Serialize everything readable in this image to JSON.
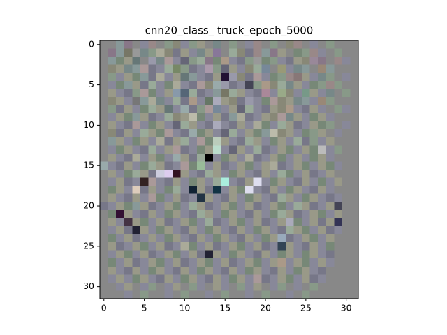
{
  "chart_data": {
    "type": "image",
    "title": "cnn20_class_ truck_epoch_5000",
    "xlim": [
      -0.5,
      31.5
    ],
    "ylim": [
      31.5,
      -0.5
    ],
    "xticks": [
      0,
      5,
      10,
      15,
      20,
      25,
      30
    ],
    "yticks": [
      0,
      5,
      10,
      15,
      20,
      25,
      30
    ],
    "pixels": [
      [
        "#888",
        "#888",
        "#899",
        "#878",
        "#888",
        "#889",
        "#988",
        "#888",
        "#898",
        "#887",
        "#889",
        "#898",
        "#998",
        "#888",
        "#788",
        "#888",
        "#898",
        "#888",
        "#889",
        "#988",
        "#888",
        "#898",
        "#888",
        "#887",
        "#988",
        "#888",
        "#889",
        "#888",
        "#898",
        "#888",
        "#888",
        "#888"
      ],
      [
        "#888",
        "#878",
        "#899",
        "#776",
        "#999",
        "#788",
        "#898",
        "#aa9",
        "#887",
        "#778",
        "#998",
        "#889",
        "#788",
        "#998",
        "#879",
        "#888",
        "#9a9",
        "#887",
        "#778",
        "#988",
        "#899",
        "#878",
        "#998",
        "#888",
        "#787",
        "#898",
        "#988",
        "#889",
        "#888",
        "#898",
        "#888",
        "#888"
      ],
      [
        "#888",
        "#899",
        "#787",
        "#998",
        "#677",
        "#888",
        "#99a",
        "#788",
        "#a99",
        "#889",
        "#667",
        "#898",
        "#9a9",
        "#878",
        "#787",
        "#a98",
        "#889",
        "#778",
        "#898",
        "#999",
        "#787",
        "#898",
        "#889",
        "#778",
        "#998",
        "#887",
        "#989",
        "#878",
        "#888",
        "#988",
        "#889",
        "#888"
      ],
      [
        "#888",
        "#887",
        "#998",
        "#788",
        "#899",
        "#a99",
        "#778",
        "#889",
        "#9a9",
        "#786",
        "#898",
        "#778",
        "#889",
        "#a9a",
        "#898",
        "#667",
        "#998",
        "#889",
        "#887",
        "#9a9",
        "#789",
        "#888",
        "#997",
        "#889",
        "#788",
        "#899",
        "#888",
        "#987",
        "#899",
        "#888",
        "#888",
        "#888"
      ],
      [
        "#888",
        "#898",
        "#889",
        "#998",
        "#787",
        "#899",
        "#778",
        "#aa9",
        "#889",
        "#998",
        "#677",
        "#899",
        "#889",
        "#778",
        "#998",
        "#213",
        "#99a",
        "#887",
        "#778",
        "#a99",
        "#889",
        "#787",
        "#898",
        "#988",
        "#877",
        "#998",
        "#889",
        "#788",
        "#898",
        "#888",
        "#889",
        "#888"
      ],
      [
        "#888",
        "#889",
        "#787",
        "#899",
        "#998",
        "#778",
        "#9a9",
        "#889",
        "#787",
        "#aa9",
        "#889",
        "#778",
        "#a99",
        "#887",
        "#9aa",
        "#99a",
        "#778",
        "#889",
        "#445",
        "#898",
        "#a98",
        "#887",
        "#9a9",
        "#788",
        "#998",
        "#889",
        "#787",
        "#898",
        "#988",
        "#898",
        "#888",
        "#888"
      ],
      [
        "#888",
        "#998",
        "#889",
        "#778",
        "#898",
        "#a99",
        "#787",
        "#889",
        "#998",
        "#89a",
        "#567",
        "#9a9",
        "#778",
        "#889",
        "#899",
        "#776",
        "#9a9",
        "#998",
        "#889",
        "#778",
        "#a89",
        "#889",
        "#9a8",
        "#887",
        "#889",
        "#798",
        "#998",
        "#889",
        "#788",
        "#888",
        "#898",
        "#888"
      ],
      [
        "#888",
        "#887",
        "#998",
        "#889",
        "#777",
        "#899",
        "#aa9",
        "#788",
        "#889",
        "#9a9",
        "#778",
        "#a98",
        "#889",
        "#676",
        "#aab",
        "#998",
        "#887",
        "#778",
        "#99a",
        "#889",
        "#787",
        "#a99",
        "#887",
        "#998",
        "#788",
        "#899",
        "#889",
        "#987",
        "#898",
        "#888",
        "#888",
        "#888"
      ],
      [
        "#888",
        "#898",
        "#778",
        "#998",
        "#889",
        "#787",
        "#9a9",
        "#998",
        "#677",
        "#889",
        "#9aa",
        "#778",
        "#898",
        "#a99",
        "#789",
        "#889",
        "#998",
        "#667",
        "#9a9",
        "#889",
        "#778",
        "#998",
        "#887",
        "#a98",
        "#889",
        "#778",
        "#998",
        "#889",
        "#888",
        "#898",
        "#889",
        "#888"
      ],
      [
        "#888",
        "#889",
        "#998",
        "#787",
        "#899",
        "#998",
        "#778",
        "#889",
        "#9a9",
        "#887",
        "#998",
        "#bba",
        "#787",
        "#889",
        "#998",
        "#778",
        "#899",
        "#aa9",
        "#778",
        "#889",
        "#998",
        "#887",
        "#a99",
        "#788",
        "#998",
        "#889",
        "#787",
        "#998",
        "#889",
        "#888",
        "#888",
        "#888"
      ],
      [
        "#888",
        "#998",
        "#889",
        "#778",
        "#a99",
        "#889",
        "#787",
        "#998",
        "#889",
        "#667",
        "#9a9",
        "#998",
        "#889",
        "#778",
        "#aab",
        "#889",
        "#778",
        "#998",
        "#889",
        "#aa9",
        "#787",
        "#889",
        "#9a9",
        "#998",
        "#778",
        "#889",
        "#998",
        "#787",
        "#898",
        "#888",
        "#889",
        "#888"
      ],
      [
        "#888",
        "#887",
        "#778",
        "#998",
        "#889",
        "#9a9",
        "#998",
        "#787",
        "#a99",
        "#889",
        "#778",
        "#9aa",
        "#787",
        "#998",
        "#889",
        "#667",
        "#9a9",
        "#889",
        "#998",
        "#787",
        "#899",
        "#bba",
        "#887",
        "#998",
        "#889",
        "#787",
        "#898",
        "#998",
        "#888",
        "#889",
        "#888",
        "#888"
      ],
      [
        "#888",
        "#899",
        "#998",
        "#889",
        "#787",
        "#998",
        "#889",
        "#aa9",
        "#778",
        "#998",
        "#9a9",
        "#889",
        "#a99",
        "#787",
        "#bcb",
        "#998",
        "#889",
        "#778",
        "#9a9",
        "#998",
        "#889",
        "#787",
        "#998",
        "#889",
        "#9a9",
        "#778",
        "#898",
        "#889",
        "#998",
        "#888",
        "#888",
        "#888"
      ],
      [
        "#888",
        "#889",
        "#787",
        "#998",
        "#889",
        "#778",
        "#9a9",
        "#889",
        "#998",
        "#a99",
        "#778",
        "#889",
        "#787",
        "#998",
        "#bdc",
        "#889",
        "#667",
        "#998",
        "#889",
        "#9a9",
        "#778",
        "#889",
        "#998",
        "#787",
        "#889",
        "#998",
        "#787",
        "#bbb",
        "#889",
        "#898",
        "#888",
        "#888"
      ],
      [
        "#888",
        "#998",
        "#889",
        "#778",
        "#aa9",
        "#889",
        "#998",
        "#787",
        "#889",
        "#9aa",
        "#998",
        "#778",
        "#9a9",
        "#000",
        "#889",
        "#787",
        "#998",
        "#889",
        "#aa9",
        "#778",
        "#889",
        "#998",
        "#787",
        "#889",
        "#998",
        "#889",
        "#787",
        "#998",
        "#889",
        "#888",
        "#888",
        "#888"
      ],
      [
        "#9aa",
        "#889",
        "#778",
        "#998",
        "#889",
        "#787",
        "#9a9",
        "#998",
        "#778",
        "#889",
        "#a99",
        "#787",
        "#9b9",
        "#889",
        "#998",
        "#778",
        "#889",
        "#998",
        "#787",
        "#889",
        "#998",
        "#aa9",
        "#778",
        "#889",
        "#998",
        "#787",
        "#889",
        "#998",
        "#787",
        "#889",
        "#888",
        "#888"
      ],
      [
        "#888",
        "#998",
        "#889",
        "#787",
        "#9a9",
        "#998",
        "#778",
        "#ccd",
        "#dce",
        "#312",
        "#998",
        "#889",
        "#778",
        "#9a9",
        "#998",
        "#889",
        "#787",
        "#998",
        "#889",
        "#778",
        "#998",
        "#889",
        "#9a9",
        "#787",
        "#889",
        "#998",
        "#778",
        "#889",
        "#998",
        "#888",
        "#888",
        "#888"
      ],
      [
        "#888",
        "#889",
        "#998",
        "#778",
        "#889",
        "#322",
        "#a99",
        "#889",
        "#778",
        "#998",
        "#889",
        "#787",
        "#998",
        "#889",
        "#9a9",
        "#aed",
        "#889",
        "#778",
        "#998",
        "#dde",
        "#889",
        "#787",
        "#998",
        "#889",
        "#778",
        "#998",
        "#889",
        "#787",
        "#889",
        "#998",
        "#888",
        "#888"
      ],
      [
        "#888",
        "#787",
        "#998",
        "#889",
        "#dcb",
        "#778",
        "#998",
        "#889",
        "#787",
        "#9a9",
        "#889",
        "#123",
        "#998",
        "#778",
        "#134",
        "#889",
        "#998",
        "#787",
        "#dde",
        "#889",
        "#778",
        "#998",
        "#889",
        "#787",
        "#998",
        "#889",
        "#778",
        "#998",
        "#889",
        "#888",
        "#888",
        "#888"
      ],
      [
        "#888",
        "#998",
        "#889",
        "#778",
        "#998",
        "#889",
        "#a99",
        "#787",
        "#889",
        "#998",
        "#778",
        "#889",
        "#234",
        "#998",
        "#889",
        "#778",
        "#998",
        "#889",
        "#787",
        "#998",
        "#889",
        "#778",
        "#9a9",
        "#998",
        "#889",
        "#787",
        "#998",
        "#889",
        "#778",
        "#889",
        "#888",
        "#888"
      ],
      [
        "#778",
        "#889",
        "#998",
        "#787",
        "#899",
        "#998",
        "#778",
        "#889",
        "#998",
        "#787",
        "#889",
        "#9a9",
        "#998",
        "#778",
        "#889",
        "#998",
        "#787",
        "#889",
        "#998",
        "#778",
        "#889",
        "#998",
        "#787",
        "#889",
        "#9a9",
        "#998",
        "#778",
        "#889",
        "#998",
        "#445",
        "#888",
        "#888"
      ],
      [
        "#888",
        "#787",
        "#313",
        "#998",
        "#889",
        "#778",
        "#998",
        "#889",
        "#787",
        "#998",
        "#889",
        "#778",
        "#9a9",
        "#998",
        "#889",
        "#787",
        "#998",
        "#889",
        "#778",
        "#998",
        "#889",
        "#787",
        "#9a9",
        "#998",
        "#778",
        "#889",
        "#998",
        "#787",
        "#889",
        "#998",
        "#888",
        "#888"
      ],
      [
        "#888",
        "#998",
        "#889",
        "#434",
        "#998",
        "#787",
        "#889",
        "#998",
        "#778",
        "#889",
        "#998",
        "#787",
        "#889",
        "#9a9",
        "#778",
        "#889",
        "#998",
        "#787",
        "#889",
        "#998",
        "#778",
        "#889",
        "#998",
        "#aab",
        "#787",
        "#889",
        "#998",
        "#778",
        "#998",
        "#335",
        "#888",
        "#888"
      ],
      [
        "#888",
        "#889",
        "#998",
        "#778",
        "#223",
        "#998",
        "#889",
        "#787",
        "#998",
        "#889",
        "#778",
        "#998",
        "#889",
        "#787",
        "#998",
        "#889",
        "#778",
        "#998",
        "#889",
        "#787",
        "#998",
        "#889",
        "#778",
        "#9a9",
        "#998",
        "#787",
        "#889",
        "#998",
        "#778",
        "#889",
        "#888",
        "#888"
      ],
      [
        "#888",
        "#787",
        "#889",
        "#998",
        "#778",
        "#889",
        "#998",
        "#889",
        "#787",
        "#998",
        "#889",
        "#778",
        "#998",
        "#889",
        "#787",
        "#998",
        "#889",
        "#778",
        "#998",
        "#889",
        "#787",
        "#998",
        "#9ab",
        "#778",
        "#889",
        "#998",
        "#787",
        "#889",
        "#998",
        "#888",
        "#888",
        "#888"
      ],
      [
        "#888",
        "#998",
        "#778",
        "#889",
        "#998",
        "#787",
        "#889",
        "#998",
        "#778",
        "#889",
        "#aa9",
        "#787",
        "#889",
        "#998",
        "#778",
        "#889",
        "#998",
        "#787",
        "#889",
        "#998",
        "#778",
        "#889",
        "#345",
        "#998",
        "#889",
        "#778",
        "#998",
        "#889",
        "#787",
        "#888",
        "#888",
        "#888"
      ],
      [
        "#888",
        "#889",
        "#998",
        "#787",
        "#889",
        "#998",
        "#778",
        "#889",
        "#998",
        "#787",
        "#889",
        "#998",
        "#778",
        "#223",
        "#998",
        "#889",
        "#787",
        "#998",
        "#889",
        "#778",
        "#998",
        "#889",
        "#787",
        "#998",
        "#889",
        "#787",
        "#998",
        "#889",
        "#778",
        "#888",
        "#888",
        "#888"
      ],
      [
        "#888",
        "#787",
        "#889",
        "#998",
        "#778",
        "#889",
        "#998",
        "#787",
        "#889",
        "#998",
        "#778",
        "#889",
        "#998",
        "#787",
        "#889",
        "#998",
        "#778",
        "#889",
        "#998",
        "#787",
        "#889",
        "#998",
        "#a98",
        "#889",
        "#998",
        "#787",
        "#889",
        "#998",
        "#889",
        "#888",
        "#888",
        "#888"
      ],
      [
        "#888",
        "#998",
        "#889",
        "#778",
        "#998",
        "#889",
        "#787",
        "#998",
        "#889",
        "#778",
        "#998",
        "#889",
        "#787",
        "#998",
        "#889",
        "#778",
        "#998",
        "#889",
        "#787",
        "#998",
        "#889",
        "#778",
        "#998",
        "#889",
        "#787",
        "#998",
        "#889",
        "#778",
        "#888",
        "#888",
        "#888",
        "#888"
      ],
      [
        "#888",
        "#889",
        "#998",
        "#889",
        "#787",
        "#998",
        "#889",
        "#778",
        "#998",
        "#889",
        "#787",
        "#998",
        "#889",
        "#778",
        "#998",
        "#889",
        "#787",
        "#998",
        "#889",
        "#a99",
        "#778",
        "#889",
        "#998",
        "#787",
        "#889",
        "#998",
        "#778",
        "#889",
        "#888",
        "#888",
        "#888",
        "#888"
      ],
      [
        "#888",
        "#888",
        "#889",
        "#998",
        "#888",
        "#889",
        "#898",
        "#888",
        "#889",
        "#998",
        "#888",
        "#898",
        "#889",
        "#888",
        "#998",
        "#889",
        "#888",
        "#898",
        "#889",
        "#998",
        "#888",
        "#889",
        "#898",
        "#888",
        "#889",
        "#888",
        "#898",
        "#888",
        "#888",
        "#888",
        "#888",
        "#888"
      ],
      [
        "#888",
        "#888",
        "#888",
        "#889",
        "#888",
        "#898",
        "#888",
        "#888",
        "#889",
        "#888",
        "#898",
        "#888",
        "#888",
        "#889",
        "#888",
        "#898",
        "#888",
        "#888",
        "#889",
        "#888",
        "#898",
        "#888",
        "#888",
        "#889",
        "#888",
        "#898",
        "#888",
        "#888",
        "#888",
        "#888",
        "#888",
        "#888"
      ]
    ]
  }
}
